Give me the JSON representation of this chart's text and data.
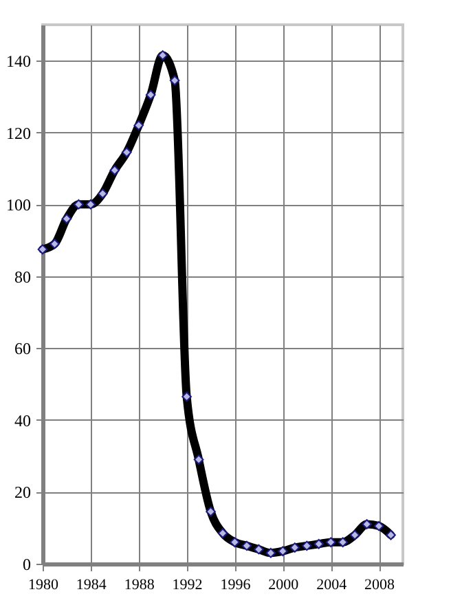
{
  "chart_data": {
    "type": "line",
    "x": [
      1980,
      1981,
      1982,
      1983,
      1984,
      1985,
      1986,
      1987,
      1988,
      1989,
      1990,
      1991,
      1992,
      1993,
      1994,
      1995,
      1996,
      1997,
      1998,
      1999,
      2000,
      2001,
      2002,
      2003,
      2004,
      2005,
      2006,
      2007,
      2008,
      2009
    ],
    "series": [
      {
        "color": "#000000",
        "values": [
          87.5,
          89,
          96,
          100,
          100,
          103,
          109.5,
          114.5,
          122,
          130.5,
          141.5,
          134.5,
          46.5,
          29,
          14.5,
          8.5,
          6,
          5,
          4,
          3,
          3.5,
          4.5,
          5,
          5.5,
          6,
          6,
          8,
          11,
          10.5,
          8
        ]
      }
    ],
    "xlim": [
      1980,
      2010
    ],
    "xticks": [
      1980,
      1984,
      1988,
      1992,
      1996,
      2000,
      2004,
      2008
    ],
    "ylim": [
      0,
      150
    ],
    "yticks": [
      0,
      20,
      40,
      60,
      80,
      100,
      120,
      140
    ],
    "grid": true,
    "marker": "diamond",
    "line_style": "solid"
  }
}
